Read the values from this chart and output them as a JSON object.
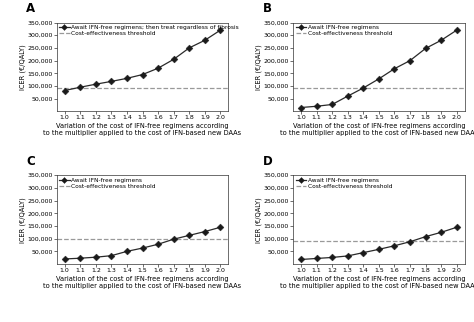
{
  "panels": [
    {
      "label": "A",
      "legend_line1": "Await IFN-free regimens; then treat regardless of fibrosis",
      "legend_line2": "Cost-effectiveness threshold",
      "x": [
        1.0,
        1.1,
        1.2,
        1.3,
        1.4,
        1.5,
        1.6,
        1.7,
        1.8,
        1.9,
        2.0
      ],
      "y": [
        82000,
        95000,
        107000,
        118000,
        130000,
        145000,
        170000,
        205000,
        250000,
        280000,
        320000
      ],
      "threshold": 90000,
      "ylim": [
        0,
        350000
      ],
      "yticks": [
        50000,
        100000,
        150000,
        200000,
        250000,
        300000,
        350000
      ]
    },
    {
      "label": "B",
      "legend_line1": "Await IFN-free regimens",
      "legend_line2": "Cost-effectiveness threshold",
      "x": [
        1.0,
        1.1,
        1.2,
        1.3,
        1.4,
        1.5,
        1.6,
        1.7,
        1.8,
        1.9,
        2.0
      ],
      "y": [
        15000,
        20000,
        27000,
        60000,
        92000,
        128000,
        168000,
        200000,
        248000,
        280000,
        320000
      ],
      "threshold": 90000,
      "ylim": [
        0,
        350000
      ],
      "yticks": [
        50000,
        100000,
        150000,
        200000,
        250000,
        300000,
        350000
      ]
    },
    {
      "label": "C",
      "legend_line1": "Await IFN-free regimens",
      "legend_line2": "Cost-effectiveness threshold",
      "x": [
        1.0,
        1.1,
        1.2,
        1.3,
        1.4,
        1.5,
        1.6,
        1.7,
        1.8,
        1.9,
        2.0
      ],
      "y": [
        20000,
        23000,
        27000,
        33000,
        50000,
        63000,
        78000,
        98000,
        113000,
        128000,
        145000
      ],
      "threshold": 100000,
      "ylim": [
        0,
        350000
      ],
      "yticks": [
        50000,
        100000,
        150000,
        200000,
        250000,
        300000,
        350000
      ]
    },
    {
      "label": "D",
      "legend_line1": "Await IFN-free regimens",
      "legend_line2": "Cost-effectiveness threshold",
      "x": [
        1.0,
        1.1,
        1.2,
        1.3,
        1.4,
        1.5,
        1.6,
        1.7,
        1.8,
        1.9,
        2.0
      ],
      "y": [
        18000,
        22000,
        26000,
        32000,
        45000,
        58000,
        72000,
        88000,
        108000,
        125000,
        145000
      ],
      "threshold": 90000,
      "ylim": [
        0,
        350000
      ],
      "yticks": [
        50000,
        100000,
        150000,
        200000,
        250000,
        300000,
        350000
      ]
    }
  ],
  "xlabel": "Variation of the cost of IFN-free regimens according\nto the multiplier applied to the cost of IFN-based new DAAs",
  "ylabel": "ICER (€/QALY)",
  "line_color": "#2a2a2a",
  "threshold_color": "#999999",
  "marker_color": "#1a1a1a",
  "marker_size": 3.5,
  "line_width": 0.9,
  "threshold_lw": 0.9,
  "fontsize_label": 4.8,
  "fontsize_tick": 4.5,
  "fontsize_legend": 4.2,
  "fontsize_panel_label": 8.5
}
